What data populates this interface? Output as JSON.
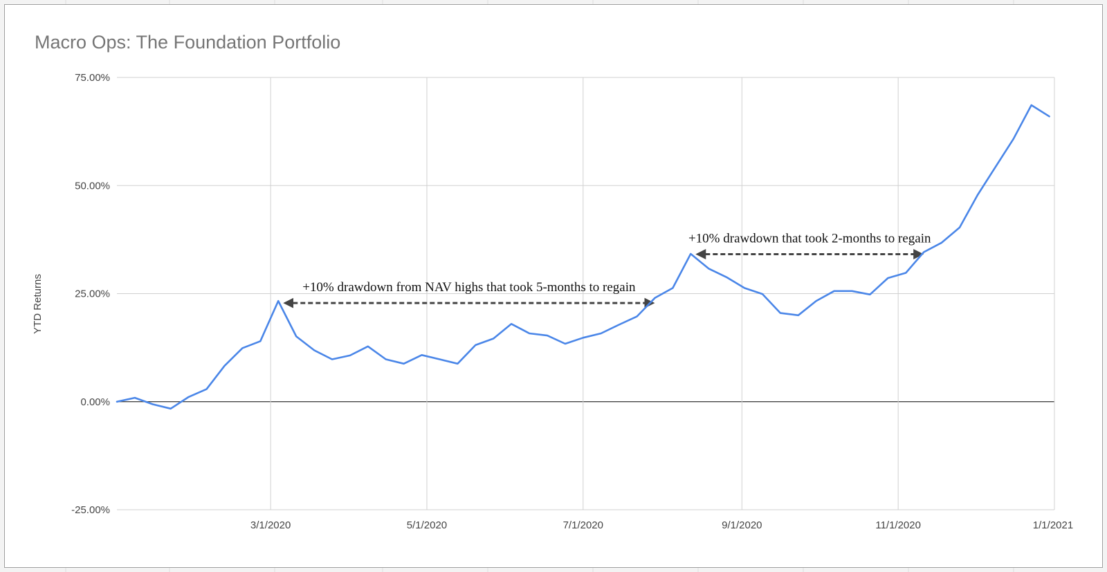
{
  "colors": {
    "line": "#4a86e8",
    "grid": "#d0d0d0",
    "zero_line": "#333333",
    "annotation_arrow": "#444444"
  },
  "chart_data": {
    "type": "line",
    "title": "Macro Ops: The Foundation Portfolio",
    "xlabel": "",
    "ylabel": "YTD Returns",
    "x_tick_labels": [
      "3/1/2020",
      "5/1/2020",
      "7/1/2020",
      "9/1/2020",
      "11/1/2020",
      "1/1/2021"
    ],
    "x_ticks": [
      "2020-03-01",
      "2020-05-01",
      "2020-07-01",
      "2020-09-01",
      "2020-11-01",
      "2021-01-01"
    ],
    "y_tick_labels": [
      "75.00%",
      "50.00%",
      "25.00%",
      "0.00%",
      "-25.00%"
    ],
    "y_ticks": [
      75,
      50,
      25,
      0,
      -25
    ],
    "xlim": [
      "2020-01-01",
      "2021-01-01"
    ],
    "ylim": [
      -25,
      75
    ],
    "grid": true,
    "legend": "none",
    "series": [
      {
        "x": [
          "2020-01-01",
          "2020-01-08",
          "2020-01-15",
          "2020-01-22",
          "2020-01-29",
          "2020-02-05",
          "2020-02-12",
          "2020-02-19",
          "2020-02-26",
          "2020-03-04",
          "2020-03-11",
          "2020-03-18",
          "2020-03-25",
          "2020-04-01",
          "2020-04-08",
          "2020-04-15",
          "2020-04-22",
          "2020-04-29",
          "2020-05-06",
          "2020-05-13",
          "2020-05-20",
          "2020-05-27",
          "2020-06-03",
          "2020-06-10",
          "2020-06-17",
          "2020-06-24",
          "2020-07-01",
          "2020-07-08",
          "2020-07-15",
          "2020-07-22",
          "2020-07-29",
          "2020-08-05",
          "2020-08-12",
          "2020-08-19",
          "2020-08-26",
          "2020-09-02",
          "2020-09-09",
          "2020-09-16",
          "2020-09-23",
          "2020-09-30",
          "2020-10-07",
          "2020-10-14",
          "2020-10-21",
          "2020-10-28",
          "2020-11-04",
          "2020-11-11",
          "2020-11-18",
          "2020-11-25",
          "2020-12-02",
          "2020-12-09",
          "2020-12-16",
          "2020-12-23",
          "2020-12-30"
        ],
        "values": [
          0.0,
          0.9,
          -0.6,
          -1.6,
          1.1,
          2.9,
          8.3,
          12.4,
          14.0,
          23.3,
          15.1,
          11.9,
          9.8,
          10.7,
          12.8,
          9.8,
          8.8,
          10.8,
          9.8,
          8.8,
          13.1,
          14.6,
          18.0,
          15.8,
          15.3,
          13.4,
          14.8,
          15.8,
          17.8,
          19.7,
          24.0,
          26.3,
          34.2,
          30.8,
          28.8,
          26.3,
          24.9,
          20.5,
          20.0,
          23.3,
          25.6,
          25.6,
          24.8,
          28.6,
          29.8,
          34.6,
          36.8,
          40.3,
          47.8,
          54.3,
          60.8,
          68.6,
          66.0
        ]
      }
    ],
    "annotations": [
      {
        "text": "+10% drawdown from NAV highs that took 5-months to regain",
        "from_x": "2020-03-04",
        "to_x": "2020-07-29",
        "y": 23.3
      },
      {
        "text": "+10% drawdown that took 2-months to regain",
        "from_x": "2020-08-12",
        "to_x": "2020-11-11",
        "y": 34.6
      }
    ]
  }
}
